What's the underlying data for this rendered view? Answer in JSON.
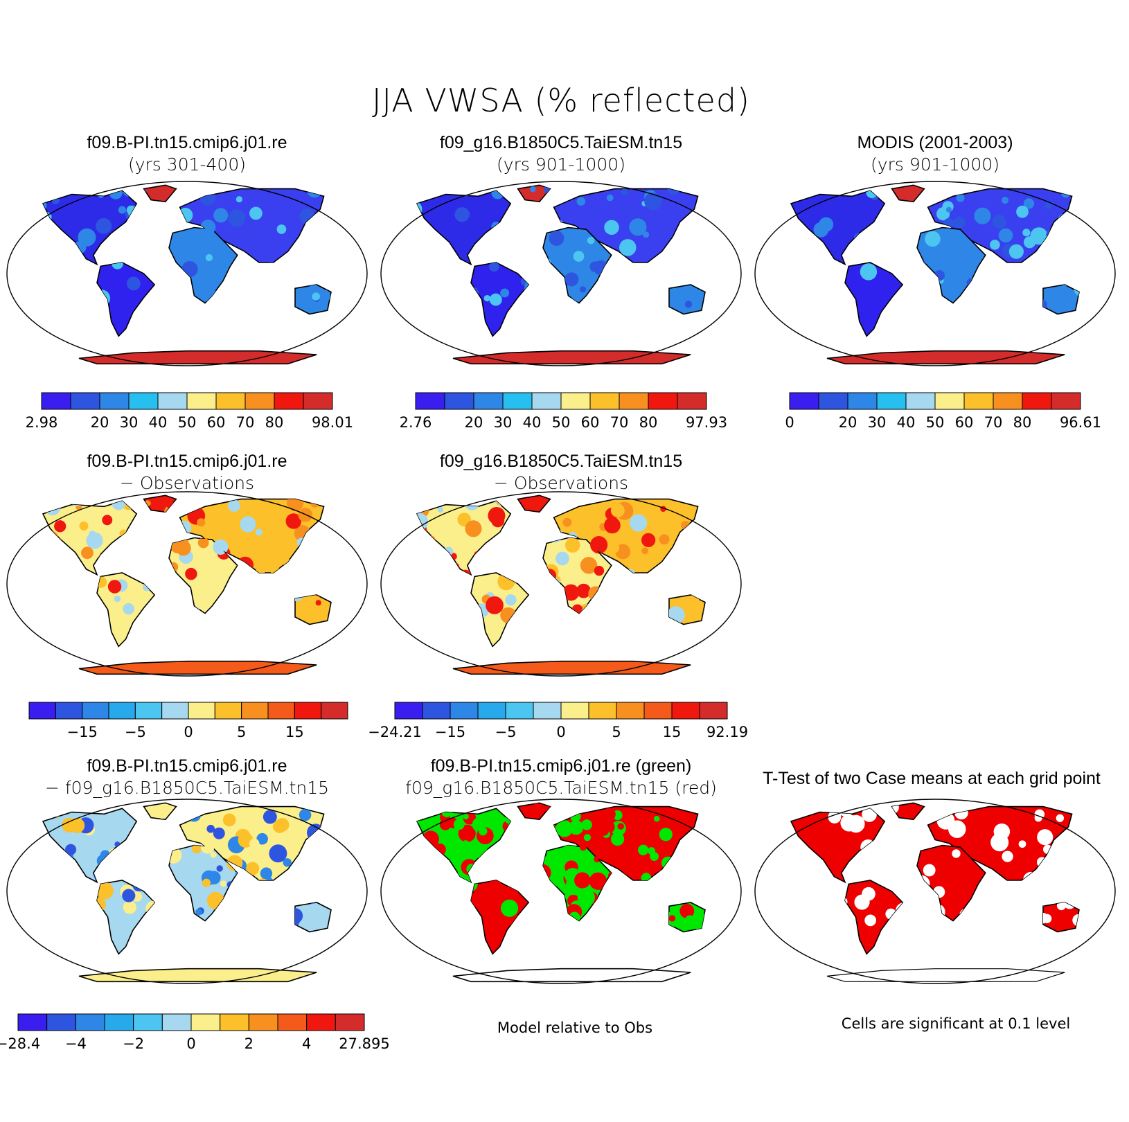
{
  "title": "JJA VWSA (% reflected)",
  "colors": {
    "abs": [
      "#3a1ef0",
      "#2d55e0",
      "#2e86e6",
      "#27bfef",
      "#a6d8ef",
      "#fbef8c",
      "#fbc02a",
      "#f8901f",
      "#f0180e",
      "#d42b2b"
    ],
    "diff": [
      "#3a1ef0",
      "#2d55e0",
      "#2e86e6",
      "#27a9ec",
      "#4cc6f0",
      "#a6d8ef",
      "#fbef8c",
      "#fbc02a",
      "#f8901f",
      "#f45a1a",
      "#f0180e",
      "#d42b2b"
    ],
    "green": "#00e800",
    "red": "#ee0000"
  },
  "panels": [
    {
      "id": "p1",
      "title1": "f09.B-PI.tn15.cmip6.j01.re",
      "title2": "(yrs 301-400)",
      "mode": "abs",
      "colorbar": {
        "labels": [
          "2.98",
          "20",
          "30",
          "40",
          "50",
          "60",
          "70",
          "80",
          "98.01"
        ]
      }
    },
    {
      "id": "p2",
      "title1": "f09_g16.B1850C5.TaiESM.tn15",
      "title2": "(yrs 901-1000)",
      "mode": "abs",
      "colorbar": {
        "labels": [
          "2.76",
          "20",
          "30",
          "40",
          "50",
          "60",
          "70",
          "80",
          "97.93"
        ]
      }
    },
    {
      "id": "p3",
      "title1": "MODIS (2001-2003)",
      "title2": "(yrs 901-1000)",
      "mode": "abs",
      "colorbar": {
        "labels": [
          "0",
          "20",
          "30",
          "40",
          "50",
          "60",
          "70",
          "80",
          "96.61"
        ]
      }
    },
    {
      "id": "p4",
      "title1": "f09.B-PI.tn15.cmip6.j01.re",
      "title2": "− Observations",
      "mode": "obs",
      "colorbar": {
        "labels": [
          "−15",
          "−5",
          "0",
          "5",
          "15"
        ]
      }
    },
    {
      "id": "p5",
      "title1": "f09_g16.B1850C5.TaiESM.tn15",
      "title2": "− Observations",
      "mode": "obs",
      "colorbar": {
        "labels": [
          "−24.21",
          "−15",
          "−5",
          "0",
          "5",
          "15",
          "92.19"
        ]
      }
    },
    {
      "id": "p6",
      "title1": "f09.B-PI.tn15.cmip6.j01.re",
      "title2": "− f09_g16.B1850C5.TaiESM.tn15",
      "mode": "diff",
      "colorbar": {
        "labels": [
          "−28.4",
          "−4",
          "−2",
          "0",
          "2",
          "4",
          "27.895"
        ]
      }
    },
    {
      "id": "p7",
      "title1": "f09.B-PI.tn15.cmip6.j01.re (green)",
      "title2": "f09_g16.B1850C5.TaiESM.tn15 (red)",
      "mode": "rg",
      "caption": "Model relative to Obs"
    },
    {
      "id": "p8",
      "title1": "T-Test of two Case means at each grid point",
      "title2": "",
      "mode": "ttest",
      "caption": "Cells are significant at 0.1 level"
    }
  ]
}
